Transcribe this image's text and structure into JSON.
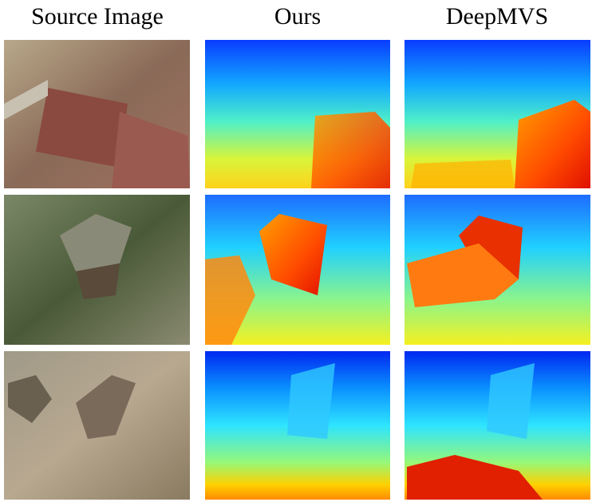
{
  "columns": [
    "Source Image",
    "Ours",
    "DeepMVS"
  ]
}
